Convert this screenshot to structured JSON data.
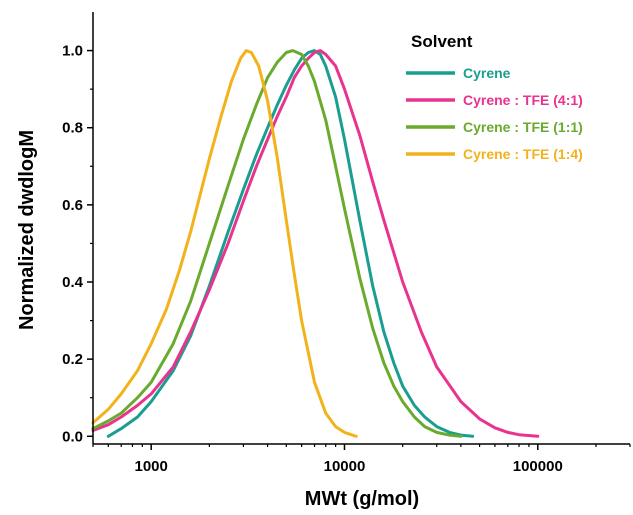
{
  "chart_data": {
    "type": "line",
    "title": "",
    "xlabel": "MWt (g/mol)",
    "ylabel": "Normalized dwdlogM",
    "x_scale": "log",
    "xlim": [
      500,
      300000
    ],
    "ylim": [
      -0.02,
      1.1
    ],
    "x_ticks": [
      1000,
      10000,
      100000
    ],
    "x_tick_labels": [
      "1000",
      "10000",
      "100000"
    ],
    "y_ticks": [
      0.0,
      0.2,
      0.4,
      0.6,
      0.8,
      1.0
    ],
    "y_tick_labels": [
      "0.0",
      "0.2",
      "0.4",
      "0.6",
      "0.8",
      "1.0"
    ],
    "grid": false,
    "legend": {
      "title": "Solvent",
      "position": "top-right"
    },
    "series": [
      {
        "name": "Cyrene",
        "color": "#1a9e8f",
        "points": [
          [
            600,
            0.0
          ],
          [
            700,
            0.02
          ],
          [
            850,
            0.05
          ],
          [
            1000,
            0.09
          ],
          [
            1300,
            0.17
          ],
          [
            1600,
            0.26
          ],
          [
            2000,
            0.39
          ],
          [
            2500,
            0.53
          ],
          [
            3000,
            0.64
          ],
          [
            3500,
            0.73
          ],
          [
            4000,
            0.8
          ],
          [
            4500,
            0.86
          ],
          [
            5000,
            0.91
          ],
          [
            5500,
            0.95
          ],
          [
            6000,
            0.98
          ],
          [
            6500,
            0.995
          ],
          [
            7000,
            1.0
          ],
          [
            7500,
            0.99
          ],
          [
            8000,
            0.96
          ],
          [
            9000,
            0.88
          ],
          [
            10000,
            0.77
          ],
          [
            12000,
            0.56
          ],
          [
            14000,
            0.39
          ],
          [
            16000,
            0.27
          ],
          [
            18000,
            0.19
          ],
          [
            20000,
            0.13
          ],
          [
            23000,
            0.08
          ],
          [
            26000,
            0.05
          ],
          [
            30000,
            0.025
          ],
          [
            35000,
            0.01
          ],
          [
            40000,
            0.003
          ],
          [
            46000,
            0.0
          ]
        ]
      },
      {
        "name": "Cyrene : TFE (4:1)",
        "color": "#e8338f",
        "points": [
          [
            500,
            0.015
          ],
          [
            600,
            0.03
          ],
          [
            700,
            0.05
          ],
          [
            850,
            0.08
          ],
          [
            1000,
            0.11
          ],
          [
            1300,
            0.18
          ],
          [
            1600,
            0.27
          ],
          [
            2000,
            0.38
          ],
          [
            2500,
            0.5
          ],
          [
            3000,
            0.61
          ],
          [
            3500,
            0.7
          ],
          [
            4000,
            0.77
          ],
          [
            4500,
            0.83
          ],
          [
            5000,
            0.88
          ],
          [
            5500,
            0.93
          ],
          [
            6000,
            0.96
          ],
          [
            6500,
            0.98
          ],
          [
            7000,
            0.995
          ],
          [
            7500,
            1.0
          ],
          [
            8000,
            0.99
          ],
          [
            9000,
            0.96
          ],
          [
            10000,
            0.9
          ],
          [
            12000,
            0.78
          ],
          [
            14000,
            0.66
          ],
          [
            16000,
            0.56
          ],
          [
            20000,
            0.4
          ],
          [
            25000,
            0.27
          ],
          [
            30000,
            0.18
          ],
          [
            40000,
            0.09
          ],
          [
            50000,
            0.045
          ],
          [
            60000,
            0.022
          ],
          [
            70000,
            0.01
          ],
          [
            80000,
            0.004
          ],
          [
            100000,
            0.0
          ]
        ]
      },
      {
        "name": "Cyrene : TFE (1:1)",
        "color": "#6aaa2d",
        "points": [
          [
            500,
            0.02
          ],
          [
            600,
            0.04
          ],
          [
            700,
            0.06
          ],
          [
            850,
            0.1
          ],
          [
            1000,
            0.14
          ],
          [
            1300,
            0.24
          ],
          [
            1600,
            0.35
          ],
          [
            2000,
            0.5
          ],
          [
            2500,
            0.65
          ],
          [
            3000,
            0.77
          ],
          [
            3500,
            0.86
          ],
          [
            4000,
            0.93
          ],
          [
            4500,
            0.97
          ],
          [
            5000,
            0.995
          ],
          [
            5400,
            1.0
          ],
          [
            6000,
            0.99
          ],
          [
            6500,
            0.96
          ],
          [
            7000,
            0.92
          ],
          [
            8000,
            0.82
          ],
          [
            9000,
            0.7
          ],
          [
            10000,
            0.59
          ],
          [
            12000,
            0.41
          ],
          [
            14000,
            0.28
          ],
          [
            16000,
            0.19
          ],
          [
            18000,
            0.13
          ],
          [
            20000,
            0.09
          ],
          [
            23000,
            0.05
          ],
          [
            26000,
            0.025
          ],
          [
            30000,
            0.01
          ],
          [
            35000,
            0.003
          ],
          [
            40000,
            0.0
          ]
        ]
      },
      {
        "name": "Cyrene : TFE (1:4)",
        "color": "#f2b21b",
        "points": [
          [
            500,
            0.035
          ],
          [
            600,
            0.07
          ],
          [
            700,
            0.11
          ],
          [
            850,
            0.17
          ],
          [
            1000,
            0.24
          ],
          [
            1200,
            0.33
          ],
          [
            1400,
            0.43
          ],
          [
            1600,
            0.53
          ],
          [
            1800,
            0.63
          ],
          [
            2000,
            0.72
          ],
          [
            2300,
            0.83
          ],
          [
            2600,
            0.92
          ],
          [
            2900,
            0.98
          ],
          [
            3100,
            1.0
          ],
          [
            3300,
            0.995
          ],
          [
            3600,
            0.96
          ],
          [
            4000,
            0.87
          ],
          [
            4500,
            0.72
          ],
          [
            5000,
            0.56
          ],
          [
            5500,
            0.42
          ],
          [
            6000,
            0.3
          ],
          [
            7000,
            0.14
          ],
          [
            8000,
            0.06
          ],
          [
            9000,
            0.025
          ],
          [
            10000,
            0.01
          ],
          [
            11500,
            0.0
          ]
        ]
      }
    ]
  }
}
